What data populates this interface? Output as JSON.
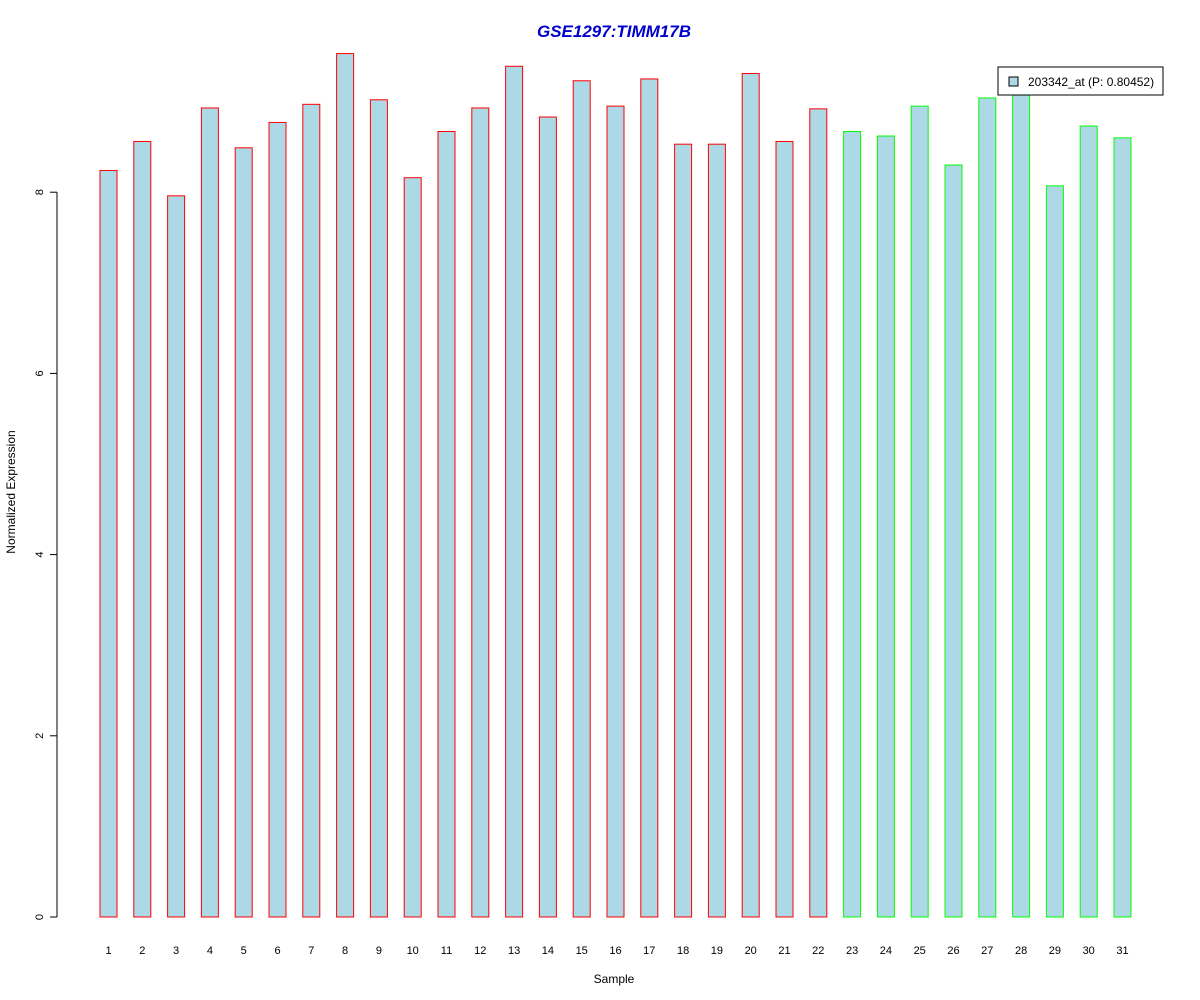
{
  "chart_data": {
    "type": "bar",
    "title": "GSE1297:TIMM17B",
    "xlabel": "Sample",
    "ylabel": "Normalized Expression",
    "ylim": [
      0,
      9.5
    ],
    "yticks": [
      0,
      2,
      4,
      6,
      8
    ],
    "categories": [
      "1",
      "2",
      "3",
      "4",
      "5",
      "6",
      "7",
      "8",
      "9",
      "10",
      "11",
      "12",
      "13",
      "14",
      "15",
      "16",
      "17",
      "18",
      "19",
      "20",
      "21",
      "22",
      "23",
      "24",
      "25",
      "26",
      "27",
      "28",
      "29",
      "30",
      "31"
    ],
    "values": [
      8.24,
      8.56,
      7.96,
      8.93,
      8.49,
      8.77,
      8.97,
      9.53,
      9.02,
      8.16,
      8.67,
      8.93,
      9.39,
      8.83,
      9.23,
      8.95,
      9.25,
      8.53,
      8.53,
      9.31,
      8.56,
      8.92,
      8.67,
      8.62,
      8.95,
      8.3,
      9.04,
      9.1,
      8.07,
      8.73,
      8.6
    ],
    "groups": [
      "red",
      "red",
      "red",
      "red",
      "red",
      "red",
      "red",
      "red",
      "red",
      "red",
      "red",
      "red",
      "red",
      "red",
      "red",
      "red",
      "red",
      "red",
      "red",
      "red",
      "red",
      "red",
      "green",
      "green",
      "green",
      "green",
      "green",
      "green",
      "green",
      "green",
      "green"
    ],
    "colors": {
      "fill": "#add8e6",
      "border_group1": "#ff0000",
      "border_group2": "#00ff00",
      "title": "#0000cd"
    },
    "legend": {
      "label": "203342_at (P: 0.80452)",
      "position": "top-right"
    },
    "grid": false
  }
}
